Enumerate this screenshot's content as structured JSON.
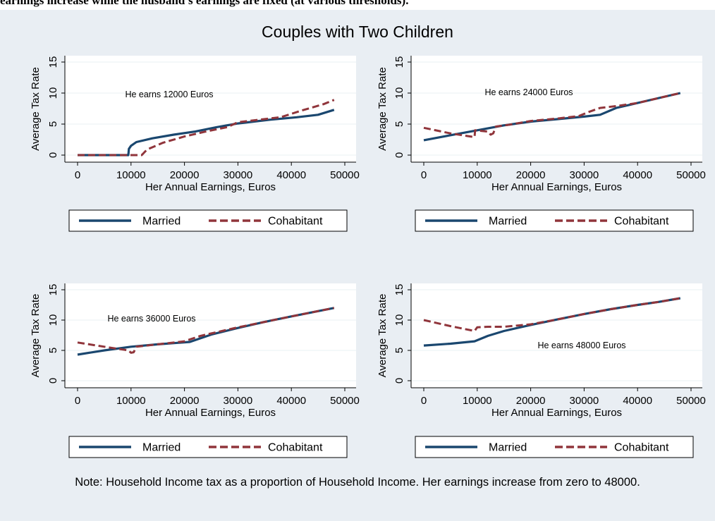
{
  "caption_fragment": "earnings increase while the husband's earnings are fixed (at various thresholds).",
  "figure_title": "Couples with Two Children",
  "note": "Note: Household Income tax as a proportion of Household Income. Her earnings increase from zero to 48000.",
  "colors": {
    "background": "#e9eef3",
    "married": "#1a476f",
    "cohabitant": "#90353b"
  },
  "chart_data": [
    {
      "type": "line",
      "xlabel": "Her Annual Earnings, Euros",
      "ylabel": "Average Tax Rate",
      "xticks": [
        0,
        10000,
        20000,
        30000,
        40000,
        50000
      ],
      "yticks": [
        0,
        5,
        10,
        15
      ],
      "xlim": [
        0,
        50000
      ],
      "ylim": [
        0,
        15
      ],
      "annotation": "He earns 12000 Euros",
      "legend": [
        "Married",
        "Cohabitant"
      ],
      "series": [
        {
          "name": "Married",
          "x": [
            0,
            9500,
            9600,
            10000,
            11000,
            14000,
            18000,
            22000,
            26000,
            30000,
            36000,
            41000,
            45000,
            48000
          ],
          "y": [
            0,
            0,
            1.0,
            1.5,
            2.1,
            2.7,
            3.3,
            3.8,
            4.5,
            5.1,
            5.7,
            6.1,
            6.5,
            7.3
          ]
        },
        {
          "name": "Cohabitant",
          "x": [
            0,
            12000,
            13000,
            16000,
            20000,
            24000,
            28000,
            30000,
            34000,
            38000,
            42000,
            46000,
            48000
          ],
          "y": [
            0,
            0,
            0.9,
            2.0,
            3.0,
            3.8,
            4.5,
            5.3,
            5.7,
            6.1,
            7.2,
            8.2,
            8.9
          ]
        }
      ]
    },
    {
      "type": "line",
      "xlabel": "Her Annual Earnings, Euros",
      "ylabel": "Average Tax Rate",
      "xticks": [
        0,
        10000,
        20000,
        30000,
        40000,
        50000
      ],
      "yticks": [
        0,
        5,
        10,
        15
      ],
      "xlim": [
        0,
        50000
      ],
      "ylim": [
        0,
        15
      ],
      "annotation": "He earns 24000 Euros",
      "legend": [
        "Married",
        "Cohabitant"
      ],
      "series": [
        {
          "name": "Married",
          "x": [
            0,
            5000,
            10000,
            15000,
            20000,
            25000,
            30000,
            33000,
            36000,
            40000,
            44000,
            48000
          ],
          "y": [
            2.4,
            3.2,
            4.0,
            4.8,
            5.4,
            5.8,
            6.2,
            6.5,
            7.6,
            8.4,
            9.2,
            10.0
          ]
        },
        {
          "name": "Cohabitant",
          "x": [
            0,
            5000,
            9500,
            9600,
            12000,
            12500,
            13000,
            13500,
            16000,
            20000,
            25000,
            29000,
            31000,
            33000,
            36000,
            40000,
            44000,
            48000
          ],
          "y": [
            4.4,
            3.5,
            2.9,
            4.0,
            3.8,
            3.3,
            3.5,
            4.6,
            4.9,
            5.5,
            5.9,
            6.3,
            7.0,
            7.6,
            7.9,
            8.4,
            9.2,
            10.0
          ]
        }
      ]
    },
    {
      "type": "line",
      "xlabel": "Her Annual Earnings, Euros",
      "ylabel": "Average Tax Rate",
      "xticks": [
        0,
        10000,
        20000,
        30000,
        40000,
        50000
      ],
      "yticks": [
        0,
        5,
        10,
        15
      ],
      "xlim": [
        0,
        50000
      ],
      "ylim": [
        0,
        15
      ],
      "annotation": "He earns 36000 Euros",
      "legend": [
        "Married",
        "Cohabitant"
      ],
      "series": [
        {
          "name": "Married",
          "x": [
            0,
            5000,
            10000,
            15000,
            21000,
            25000,
            30000,
            35000,
            40000,
            44000,
            48000
          ],
          "y": [
            4.3,
            5.0,
            5.6,
            6.0,
            6.4,
            7.6,
            8.7,
            9.7,
            10.6,
            11.3,
            12.0
          ]
        },
        {
          "name": "Cohabitant",
          "x": [
            0,
            5000,
            9500,
            10000,
            10500,
            11000,
            15000,
            20000,
            23000,
            26000,
            30000,
            35000,
            40000,
            44000,
            48000
          ],
          "y": [
            6.3,
            5.6,
            5.0,
            4.6,
            4.7,
            5.6,
            6.0,
            6.5,
            7.4,
            8.0,
            8.8,
            9.7,
            10.6,
            11.3,
            12.0
          ]
        }
      ]
    },
    {
      "type": "line",
      "xlabel": "Her Annual Earnings, Euros",
      "ylabel": "Average Tax Rate",
      "xticks": [
        0,
        10000,
        20000,
        30000,
        40000,
        50000
      ],
      "yticks": [
        0,
        5,
        10,
        15
      ],
      "xlim": [
        0,
        50000
      ],
      "ylim": [
        0,
        15
      ],
      "annotation": "He earns 48000 Euros",
      "legend": [
        "Married",
        "Cohabitant"
      ],
      "series": [
        {
          "name": "Married",
          "x": [
            0,
            5000,
            9500,
            12000,
            15000,
            20000,
            25000,
            30000,
            35000,
            40000,
            44000,
            48000
          ],
          "y": [
            5.8,
            6.1,
            6.5,
            7.4,
            8.2,
            9.2,
            10.1,
            11.0,
            11.8,
            12.5,
            13.0,
            13.6
          ]
        },
        {
          "name": "Cohabitant",
          "x": [
            0,
            5000,
            9500,
            10000,
            12000,
            15000,
            20000,
            25000,
            30000,
            35000,
            40000,
            44000,
            48000
          ],
          "y": [
            10.0,
            9.0,
            8.2,
            8.8,
            8.9,
            8.9,
            9.3,
            10.1,
            11.0,
            11.8,
            12.5,
            13.0,
            13.6
          ]
        }
      ]
    }
  ]
}
